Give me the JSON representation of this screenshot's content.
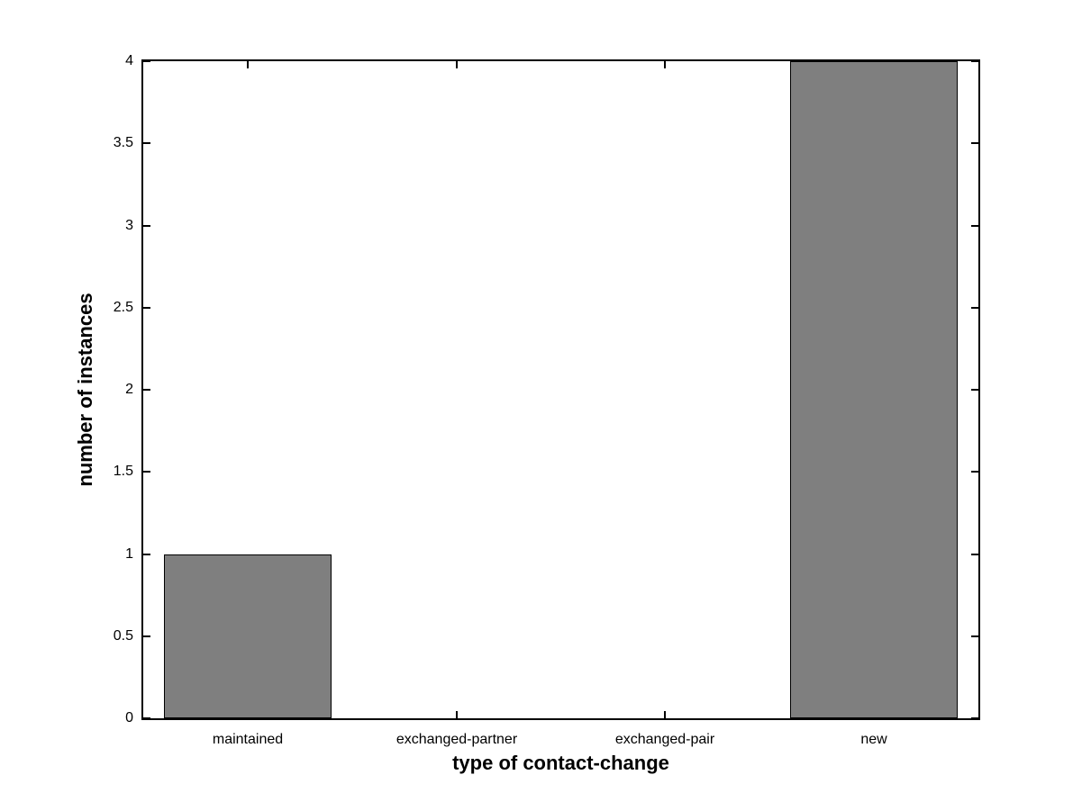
{
  "figure": {
    "background": "#ffffff",
    "axis_color": "#000000",
    "bar_fill": "#7f7f7f",
    "bar_edge": "#000000"
  },
  "chart_data": {
    "type": "bar",
    "title": "",
    "categories": [
      "maintained",
      "exchanged-partner",
      "exchanged-pair",
      "new"
    ],
    "values": [
      1,
      0,
      0,
      4
    ],
    "xlabel": "type of contact-change",
    "ylabel": "number of instances",
    "ylim": [
      0,
      4
    ],
    "yticks": [
      0,
      0.5,
      1,
      1.5,
      2,
      2.5,
      3,
      3.5,
      4
    ],
    "ytick_labels": [
      "0",
      "0.5",
      "1",
      "1.5",
      "2",
      "2.5",
      "3",
      "3.5",
      "4"
    ],
    "bar_width_fraction": 0.8,
    "grid": false,
    "legend": null,
    "tick_direction": "in",
    "box": true
  }
}
